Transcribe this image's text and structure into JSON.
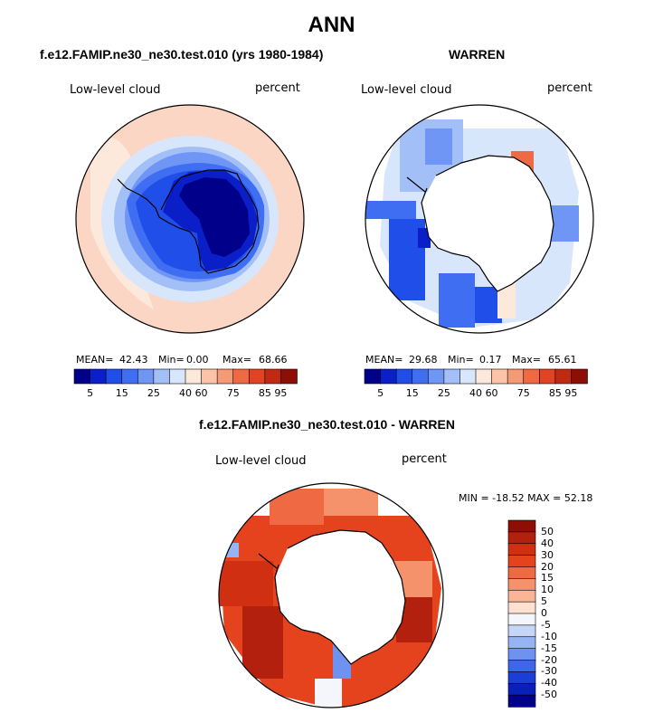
{
  "title": "ANN",
  "chart_data": [
    {
      "type": "heatmap",
      "title": "f.e12.FAMIP.ne30_ne30.test.010 (yrs 1980-1984)",
      "field": "Low-level cloud",
      "units": "percent",
      "stats": {
        "mean_label": "MEAN=",
        "mean": "42.43",
        "min_label": "Min=",
        "min": "0.00",
        "max_label": "Max=",
        "max": "68.66"
      },
      "levels": [
        "5",
        "15",
        "25",
        "40",
        "60",
        "75",
        "85",
        "95"
      ],
      "colors": [
        "#00008b",
        "#0a1fc8",
        "#1f4fe8",
        "#3f6ef2",
        "#6f95f5",
        "#a3bff8",
        "#d8e6fb",
        "#fde8dc",
        "#fbc4a6",
        "#f49a76",
        "#ef6a43",
        "#e24323",
        "#c12a12",
        "#8c0e05"
      ]
    },
    {
      "type": "heatmap",
      "title": "WARREN",
      "field": "Low-level cloud",
      "units": "percent",
      "stats": {
        "mean_label": "MEAN=",
        "mean": "29.68",
        "min_label": "Min=",
        "min": "0.17",
        "max_label": "Max=",
        "max": "65.61"
      },
      "levels": [
        "5",
        "15",
        "25",
        "40",
        "60",
        "75",
        "85",
        "95"
      ],
      "colors": [
        "#00008b",
        "#0a1fc8",
        "#1f4fe8",
        "#3f6ef2",
        "#6f95f5",
        "#a3bff8",
        "#d8e6fb",
        "#fde8dc",
        "#fbc4a6",
        "#f49a76",
        "#ef6a43",
        "#e24323",
        "#c12a12",
        "#8c0e05"
      ]
    },
    {
      "type": "heatmap",
      "title": "f.e12.FAMIP.ne30_ne30.test.010 - WARREN",
      "field": "Low-level cloud",
      "units": "percent",
      "minmax": "MIN = -18.52 MAX =  52.18",
      "levels": [
        "50",
        "40",
        "30",
        "20",
        "15",
        "10",
        "5",
        "0",
        "-5",
        "-10",
        "-15",
        "-20",
        "-30",
        "-40",
        "-50"
      ],
      "colors": [
        "#8c0e05",
        "#b3200d",
        "#d02f12",
        "#e4431e",
        "#ef6a43",
        "#f5926c",
        "#f9b596",
        "#fde0cf",
        "#f4f6fb",
        "#c5d6f7",
        "#96b3f4",
        "#6d92f0",
        "#3d67e8",
        "#1b3fd6",
        "#0820b8",
        "#00008b"
      ]
    }
  ]
}
